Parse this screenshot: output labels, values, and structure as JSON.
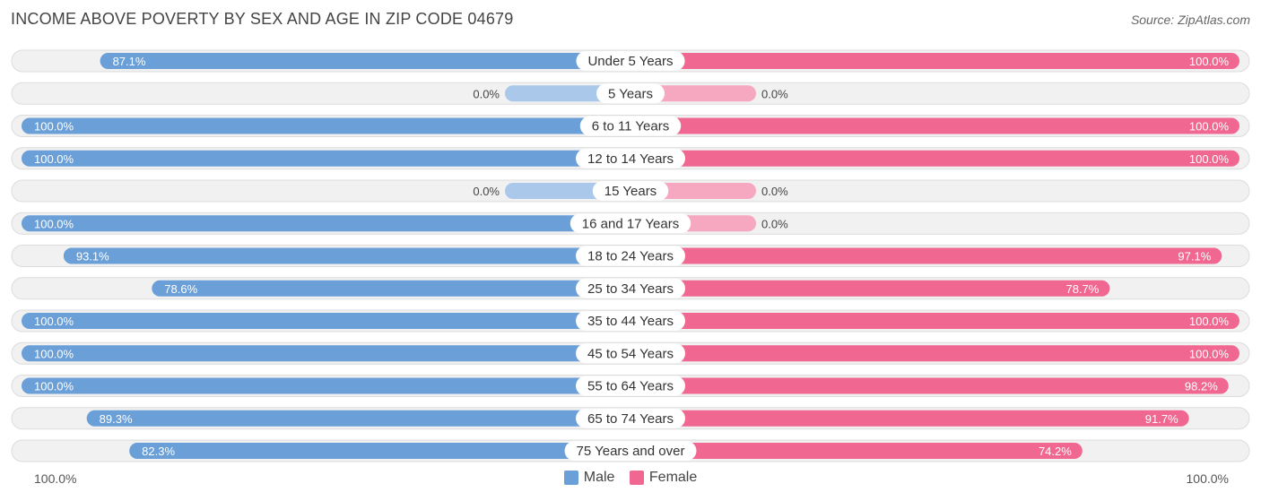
{
  "header": {
    "title": "INCOME ABOVE POVERTY BY SEX AND AGE IN ZIP CODE 04679",
    "source": "Source: ZipAtlas.com"
  },
  "colors": {
    "male": "#6a9fd8",
    "male_light": "#aac8ea",
    "female": "#f06892",
    "female_light": "#f5a8c0",
    "row_bg": "#f1f1f1",
    "row_border": "#dcdcdc"
  },
  "legend": {
    "male_label": "Male",
    "female_label": "Female"
  },
  "axis": {
    "left_label": "100.0%",
    "right_label": "100.0%"
  },
  "chart_data": {
    "type": "bar",
    "orientation": "horizontal-diverging",
    "xlim": [
      0,
      100
    ],
    "categories": [
      "Under 5 Years",
      "5 Years",
      "6 to 11 Years",
      "12 to 14 Years",
      "15 Years",
      "16 and 17 Years",
      "18 to 24 Years",
      "25 to 34 Years",
      "35 to 44 Years",
      "45 to 54 Years",
      "55 to 64 Years",
      "65 to 74 Years",
      "75 Years and over"
    ],
    "series": [
      {
        "name": "Male",
        "values": [
          87.1,
          0.0,
          100.0,
          100.0,
          0.0,
          100.0,
          93.1,
          78.6,
          100.0,
          100.0,
          100.0,
          89.3,
          82.3
        ],
        "labels": [
          "87.1%",
          "0.0%",
          "100.0%",
          "100.0%",
          "0.0%",
          "100.0%",
          "93.1%",
          "78.6%",
          "100.0%",
          "100.0%",
          "100.0%",
          "89.3%",
          "82.3%"
        ]
      },
      {
        "name": "Female",
        "values": [
          100.0,
          0.0,
          100.0,
          100.0,
          0.0,
          0.0,
          97.1,
          78.7,
          100.0,
          100.0,
          98.2,
          91.7,
          74.2
        ],
        "labels": [
          "100.0%",
          "0.0%",
          "100.0%",
          "100.0%",
          "0.0%",
          "0.0%",
          "97.1%",
          "78.7%",
          "100.0%",
          "100.0%",
          "98.2%",
          "91.7%",
          "74.2%"
        ]
      }
    ],
    "legend_position": "bottom-center"
  }
}
